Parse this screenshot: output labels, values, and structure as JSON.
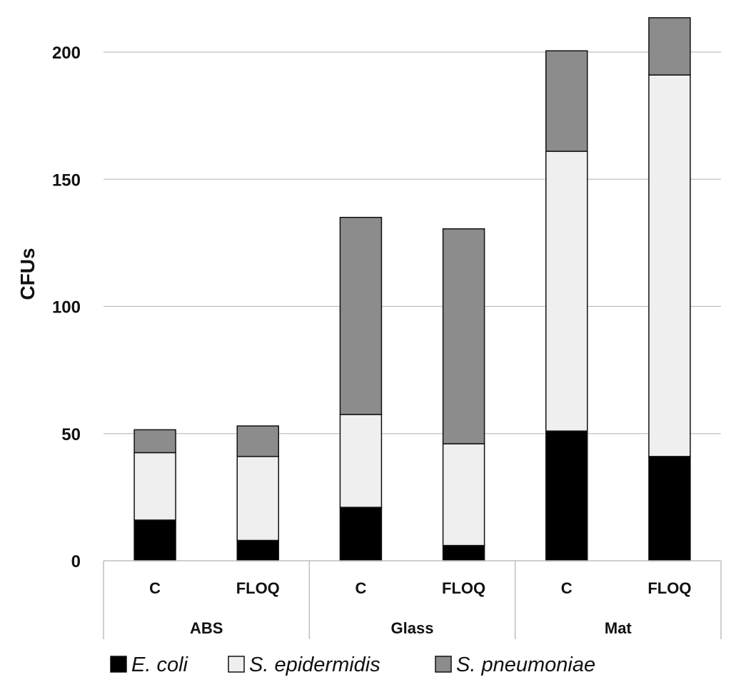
{
  "chart_data": {
    "type": "bar",
    "stacked": true,
    "title": "",
    "xlabel": "",
    "ylabel": "CFUs",
    "ylim": [
      0,
      220
    ],
    "yticks": [
      0,
      50,
      100,
      150,
      200
    ],
    "grid": "horizontal",
    "legend_position": "bottom",
    "groups": [
      {
        "label": "ABS",
        "categories": [
          "C",
          "FLOQ"
        ]
      },
      {
        "label": "Glass",
        "categories": [
          "C",
          "FLOQ"
        ]
      },
      {
        "label": "Mat",
        "categories": [
          "C",
          "FLOQ"
        ]
      }
    ],
    "series": [
      {
        "name": "E. coli",
        "color": "#000000",
        "values": [
          16,
          8,
          21,
          6,
          51,
          41
        ]
      },
      {
        "name": "S. epidermidis",
        "color": "#efefef",
        "values": [
          26.5,
          33,
          36.5,
          40,
          110,
          150
        ]
      },
      {
        "name": "S. pneumoniae",
        "color": "#8c8c8c",
        "values": [
          9,
          12,
          77.5,
          84.5,
          39.5,
          22.5
        ]
      }
    ]
  }
}
